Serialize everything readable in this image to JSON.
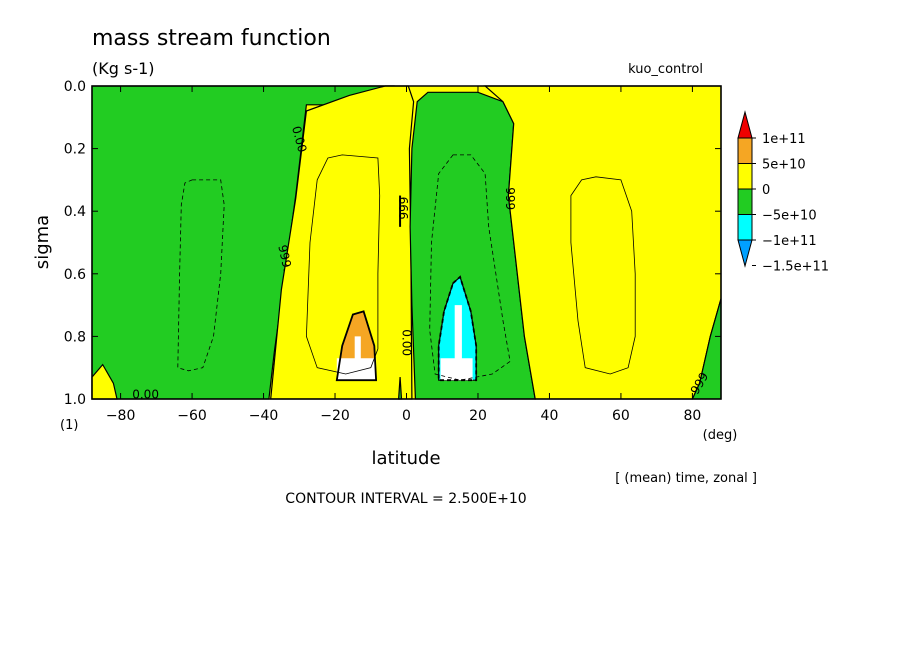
{
  "chart_data": {
    "type": "contour",
    "title": "mass stream function",
    "units": "(Kg s-1)",
    "run_label": "kuo_control",
    "xlabel": "latitude",
    "xunit": "(deg)",
    "ylabel": "sigma",
    "yunit": "(1)",
    "xlim": [
      -88,
      88
    ],
    "ylim": [
      1.0,
      0.0
    ],
    "x_ticks": [
      -80,
      -60,
      -40,
      -20,
      0,
      20,
      40,
      60,
      80
    ],
    "y_ticks": [
      0.0,
      0.2,
      0.4,
      0.6,
      0.8,
      1.0
    ],
    "x_tick_labels": [
      "−80",
      "−60",
      "−40",
      "−20",
      "0",
      "20",
      "40",
      "60",
      "80"
    ],
    "y_tick_labels": [
      "0.0",
      "0.2",
      "0.4",
      "0.6",
      "0.8",
      "1.0"
    ],
    "averaging_note": "[ (mean) time, zonal ]",
    "contour_interval": "CONTOUR INTERVAL = 2.500E+10",
    "colorbar": {
      "labels": [
        "1e+11",
        "5e+10",
        "0",
        "−5e+10",
        "−1e+11",
        "−1.5e+11"
      ],
      "levels": [
        100000000000.0,
        50000000000.0,
        0,
        -50000000000.0,
        -100000000000.0,
        -150000000000.0
      ],
      "colors": [
        "#ee0000",
        "#f5a623",
        "#ffff00",
        "#22cc22",
        "#00ffff",
        "#00a0ff"
      ]
    },
    "contour_labels": [
      {
        "text": "0.00",
        "lat": -30,
        "sigma": 0.17,
        "angle": 75
      },
      {
        "text": "999.",
        "lat": -34,
        "sigma": 0.55,
        "angle": 78
      },
      {
        "text": "0.00",
        "lat": -73,
        "sigma": 0.985,
        "angle": 0
      },
      {
        "text": "666",
        "lat": -1,
        "sigma": 0.39,
        "angle": 90
      },
      {
        "text": "0.00",
        "lat": 0,
        "sigma": 0.82,
        "angle": 90
      },
      {
        "text": "999",
        "lat": 29,
        "sigma": 0.36,
        "angle": 90
      },
      {
        "text": "999",
        "lat": 82,
        "sigma": 0.95,
        "angle": -60
      }
    ],
    "regions": [
      {
        "fill": "green",
        "points": [
          [
            -88,
            0.0
          ],
          [
            -3.5,
            0.0
          ],
          [
            -3.5,
            0.06
          ],
          [
            -28,
            0.06
          ],
          [
            -31,
            0.35
          ],
          [
            -34,
            0.6
          ],
          [
            -37,
            0.85
          ],
          [
            -38.5,
            1.0
          ],
          [
            -88,
            1.0
          ]
        ]
      },
      {
        "fill": "yellow",
        "points": [
          [
            -31.5,
            1.0
          ],
          [
            -38,
            1.0
          ],
          [
            -35,
            0.65
          ],
          [
            -31,
            0.36
          ],
          [
            -28,
            0.08
          ],
          [
            -16,
            0.03
          ],
          [
            -6,
            0.0
          ],
          [
            0.5,
            0.0
          ],
          [
            2,
            0.05
          ],
          [
            0.8,
            0.2
          ],
          [
            1.2,
            0.5
          ],
          [
            1.5,
            1.0
          ]
        ]
      },
      {
        "fill": "green",
        "points": [
          [
            2.5,
            1.0
          ],
          [
            1.5,
            0.7
          ],
          [
            1,
            0.45
          ],
          [
            1.5,
            0.2
          ],
          [
            3,
            0.05
          ],
          [
            6,
            0.02
          ],
          [
            20,
            0.02
          ],
          [
            27,
            0.05
          ],
          [
            30,
            0.12
          ],
          [
            28.5,
            0.35
          ],
          [
            31,
            0.6
          ],
          [
            33,
            0.8
          ],
          [
            36,
            1.0
          ]
        ]
      },
      {
        "fill": "yellow",
        "points": [
          [
            36,
            1.0
          ],
          [
            33,
            0.8
          ],
          [
            31,
            0.6
          ],
          [
            28.5,
            0.35
          ],
          [
            30,
            0.12
          ],
          [
            27,
            0.05
          ],
          [
            22,
            0.0
          ],
          [
            88,
            0.0
          ],
          [
            88,
            0.68
          ],
          [
            85,
            0.8
          ],
          [
            82,
            0.95
          ],
          [
            80,
            1.0
          ]
        ]
      },
      {
        "fill": "green",
        "points": [
          [
            80,
            1.0
          ],
          [
            82,
            0.95
          ],
          [
            85,
            0.8
          ],
          [
            88,
            0.68
          ],
          [
            88,
            1.0
          ]
        ]
      },
      {
        "fill": "yellow",
        "points": [
          [
            -88,
            0.93
          ],
          [
            -85,
            0.89
          ],
          [
            -82,
            0.95
          ],
          [
            -81,
            1.0
          ],
          [
            -88,
            1.0
          ]
        ]
      },
      {
        "fill": "orange",
        "points": [
          [
            -15,
            0.73
          ],
          [
            -12,
            0.72
          ],
          [
            -9,
            0.83
          ],
          [
            -8.5,
            0.94
          ],
          [
            -19.5,
            0.94
          ],
          [
            -18,
            0.83
          ]
        ]
      },
      {
        "fill": "cyan",
        "points": [
          [
            13,
            0.63
          ],
          [
            15,
            0.61
          ],
          [
            18,
            0.72
          ],
          [
            19.5,
            0.83
          ],
          [
            19.5,
            0.94
          ],
          [
            9,
            0.94
          ],
          [
            9,
            0.83
          ],
          [
            10.5,
            0.72
          ]
        ]
      },
      {
        "fill": "white",
        "points": [
          [
            -14.5,
            0.8
          ],
          [
            -12.8,
            0.8
          ],
          [
            -12.8,
            0.87
          ],
          [
            -8.5,
            0.87
          ],
          [
            -8.5,
            0.94
          ],
          [
            -19.5,
            0.94
          ],
          [
            -19.5,
            0.87
          ],
          [
            -14.5,
            0.87
          ]
        ]
      },
      {
        "fill": "white",
        "points": [
          [
            13.5,
            0.7
          ],
          [
            15.5,
            0.7
          ],
          [
            15.5,
            0.87
          ],
          [
            18.5,
            0.87
          ],
          [
            18.5,
            0.94
          ],
          [
            9.5,
            0.94
          ],
          [
            9.5,
            0.87
          ],
          [
            13.5,
            0.87
          ]
        ]
      },
      {
        "fill": "green",
        "points": [
          [
            -2.2,
            1.0
          ],
          [
            -1.8,
            0.93
          ],
          [
            -1.4,
            1.0
          ]
        ]
      }
    ],
    "contour_lines": [
      {
        "style": "dashed",
        "points": [
          [
            -60,
            0.3
          ],
          [
            -52,
            0.3
          ],
          [
            -51,
            0.38
          ],
          [
            -52,
            0.6
          ],
          [
            -54,
            0.8
          ],
          [
            -57,
            0.9
          ],
          [
            -61,
            0.91
          ],
          [
            -64,
            0.9
          ],
          [
            -63.5,
            0.6
          ],
          [
            -63,
            0.38
          ],
          [
            -62,
            0.31
          ]
        ]
      },
      {
        "style": "solid",
        "points": [
          [
            -22,
            0.23
          ],
          [
            -18,
            0.22
          ],
          [
            -8,
            0.23
          ],
          [
            -7.5,
            0.35
          ],
          [
            -8,
            0.6
          ],
          [
            -8,
            0.84
          ],
          [
            -10,
            0.9
          ],
          [
            -17,
            0.92
          ],
          [
            -25,
            0.9
          ],
          [
            -28,
            0.8
          ],
          [
            -27,
            0.5
          ],
          [
            -25,
            0.3
          ]
        ]
      },
      {
        "style": "dashed",
        "points": [
          [
            13,
            0.22
          ],
          [
            18,
            0.22
          ],
          [
            22,
            0.28
          ],
          [
            23,
            0.45
          ],
          [
            27,
            0.75
          ],
          [
            29,
            0.88
          ],
          [
            24,
            0.92
          ],
          [
            15,
            0.94
          ],
          [
            8,
            0.92
          ],
          [
            6.5,
            0.78
          ],
          [
            7,
            0.5
          ],
          [
            9,
            0.28
          ]
        ]
      },
      {
        "style": "solid",
        "points": [
          [
            53,
            0.29
          ],
          [
            60,
            0.3
          ],
          [
            63,
            0.4
          ],
          [
            64,
            0.6
          ],
          [
            64,
            0.8
          ],
          [
            62,
            0.9
          ],
          [
            57,
            0.92
          ],
          [
            50,
            0.9
          ],
          [
            48,
            0.75
          ],
          [
            46,
            0.5
          ],
          [
            46,
            0.35
          ],
          [
            49,
            0.3
          ]
        ]
      },
      {
        "style": "bold",
        "points": [
          [
            -15,
            0.73
          ],
          [
            -12,
            0.72
          ],
          [
            -9,
            0.83
          ],
          [
            -8.5,
            0.94
          ],
          [
            -19.5,
            0.94
          ],
          [
            -18,
            0.83
          ]
        ]
      },
      {
        "style": "bold-dashed",
        "points": [
          [
            13,
            0.63
          ],
          [
            15,
            0.61
          ],
          [
            18,
            0.72
          ],
          [
            19.5,
            0.83
          ],
          [
            19.5,
            0.94
          ],
          [
            9,
            0.94
          ],
          [
            9,
            0.83
          ],
          [
            10.5,
            0.72
          ]
        ]
      }
    ]
  }
}
